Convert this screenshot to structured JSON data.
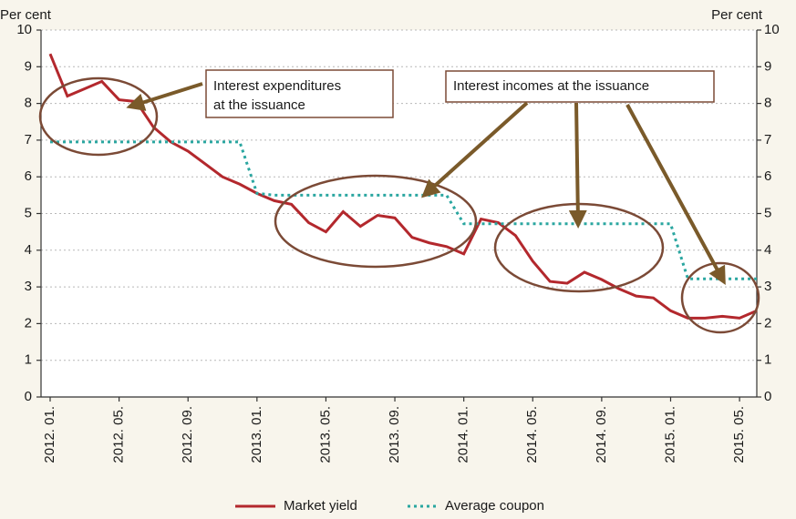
{
  "chart_data": {
    "type": "line",
    "y_label": "Per cent",
    "y2_label": "Per cent",
    "categories": [
      "2012. 01.",
      null,
      null,
      null,
      "2012. 05.",
      null,
      null,
      null,
      "2012. 09.",
      null,
      null,
      null,
      "2013. 01.",
      null,
      null,
      null,
      "2013. 05.",
      null,
      null,
      null,
      "2013. 09.",
      null,
      null,
      null,
      "2014. 01.",
      null,
      null,
      null,
      "2014. 05.",
      null,
      null,
      null,
      "2014. 09.",
      null,
      null,
      null,
      "2015. 01.",
      null,
      null,
      null,
      "2015. 05.",
      null
    ],
    "series": [
      {
        "name": "Market yield",
        "color": "#b3282d",
        "style": "solid",
        "values": [
          9.35,
          8.2,
          8.4,
          8.6,
          8.1,
          8.05,
          7.35,
          6.95,
          6.7,
          6.35,
          6.0,
          5.8,
          5.55,
          5.35,
          5.25,
          4.75,
          4.5,
          5.05,
          4.65,
          4.95,
          4.88,
          4.35,
          4.2,
          4.1,
          3.9,
          4.85,
          4.75,
          4.4,
          3.7,
          3.15,
          3.1,
          3.4,
          3.2,
          2.95,
          2.75,
          2.7,
          2.35,
          2.15,
          2.15,
          2.2,
          2.15,
          2.35
        ]
      },
      {
        "name": "Average coupon",
        "color": "#2aa6a0",
        "style": "dotted",
        "values": [
          6.95,
          6.95,
          6.95,
          6.95,
          6.95,
          6.95,
          6.95,
          6.95,
          6.95,
          6.95,
          6.95,
          6.95,
          5.55,
          5.5,
          5.5,
          5.5,
          5.5,
          5.5,
          5.5,
          5.5,
          5.5,
          5.5,
          5.5,
          5.5,
          4.72,
          4.72,
          4.72,
          4.72,
          4.72,
          4.72,
          4.72,
          4.72,
          4.72,
          4.72,
          4.72,
          4.72,
          4.72,
          3.22,
          3.22,
          3.22,
          3.22,
          3.22
        ]
      }
    ],
    "ylim": [
      0,
      10
    ],
    "yticks": [
      0,
      1,
      2,
      3,
      4,
      5,
      6,
      7,
      8,
      9,
      10
    ],
    "y2lim": [
      0,
      10
    ],
    "y2ticks": [
      0,
      1,
      2,
      3,
      4,
      5,
      6,
      7,
      8,
      9,
      10
    ],
    "grid": true,
    "legend": "bottom",
    "annotations": [
      {
        "lines": [
          "Interest expenditures",
          "at the issuance"
        ]
      },
      {
        "lines": [
          "Interest incomes at the issuance"
        ]
      }
    ]
  }
}
